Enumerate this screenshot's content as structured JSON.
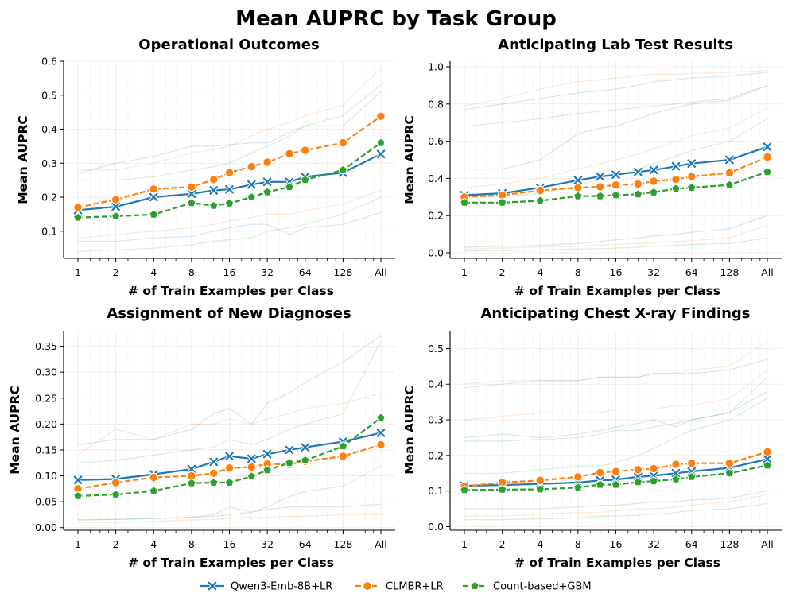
{
  "title": "Mean AUPRC by Task Group",
  "colors": {
    "qwen": "#1f77b4",
    "clmbr": "#ff7f0e",
    "count": "#2ca02c"
  },
  "legend": [
    {
      "key": "qwen",
      "label": "Qwen3-Emb-8B+LR",
      "marker": "x"
    },
    {
      "key": "clmbr",
      "label": "CLMBR+LR",
      "marker": "circle"
    },
    {
      "key": "count",
      "label": "Count-based+GBM",
      "marker": "pentagon"
    }
  ],
  "chart_data": [
    {
      "type": "line",
      "title": "Operational Outcomes",
      "xlabel": "# of Train Examples per Class",
      "ylabel": "Mean AUPRC",
      "categories": [
        "1",
        "2",
        "4",
        "8",
        "16",
        "32",
        "64",
        "128",
        "All"
      ],
      "x": [
        1,
        2,
        4,
        8,
        12,
        16,
        24,
        32,
        48,
        64,
        128,
        "All"
      ],
      "ylim": [
        0.02,
        0.6
      ],
      "yticks": [
        0.1,
        0.2,
        0.3,
        0.4,
        0.5,
        0.6
      ],
      "ytick_labels": [
        "0.1",
        "0.2",
        "0.3",
        "0.4",
        "0.5",
        "0.6"
      ],
      "series": [
        {
          "name": "Qwen3-Emb-8B+LR",
          "values": [
            0.162,
            0.172,
            0.2,
            0.21,
            0.22,
            0.223,
            0.237,
            0.245,
            0.245,
            0.26,
            0.272,
            0.327
          ]
        },
        {
          "name": "CLMBR+LR",
          "values": [
            0.17,
            0.193,
            0.224,
            0.23,
            0.252,
            0.272,
            0.29,
            0.303,
            0.328,
            0.338,
            0.36,
            0.438
          ]
        },
        {
          "name": "Count-based+GBM",
          "values": [
            0.14,
            0.144,
            0.149,
            0.183,
            0.175,
            0.182,
            0.2,
            0.215,
            0.23,
            0.251,
            0.28,
            0.36
          ]
        }
      ],
      "faint_series": [
        {
          "group": "Qwen3-Emb-8B+LR",
          "values": [
            0.27,
            0.3,
            0.32,
            0.35,
            0.35,
            0.355,
            0.36,
            0.36,
            0.39,
            0.41,
            0.41,
            0.51
          ]
        },
        {
          "group": "Qwen3-Emb-8B+LR",
          "values": [
            0.07,
            0.07,
            0.08,
            0.085,
            0.1,
            0.11,
            0.12,
            0.12,
            0.09,
            0.11,
            0.12,
            0.155
          ]
        },
        {
          "group": "CLMBR+LR",
          "values": [
            0.28,
            0.28,
            0.3,
            0.33,
            0.34,
            0.35,
            0.38,
            0.4,
            0.42,
            0.44,
            0.47,
            0.58
          ]
        },
        {
          "group": "CLMBR+LR",
          "values": [
            0.08,
            0.09,
            0.1,
            0.11,
            0.12,
            0.13,
            0.14,
            0.15,
            0.15,
            0.16,
            0.18,
            0.22
          ]
        },
        {
          "group": "Count-based+GBM",
          "values": [
            0.25,
            0.25,
            0.26,
            0.28,
            0.29,
            0.3,
            0.33,
            0.35,
            0.38,
            0.41,
            0.44,
            0.53
          ]
        },
        {
          "group": "Count-based+GBM",
          "values": [
            0.04,
            0.045,
            0.05,
            0.06,
            0.07,
            0.075,
            0.08,
            0.1,
            0.11,
            0.12,
            0.15,
            0.2
          ]
        }
      ]
    },
    {
      "type": "line",
      "title": "Anticipating Lab Test Results",
      "xlabel": "# of Train Examples per Class",
      "ylabel": "Mean AUPRC",
      "categories": [
        "1",
        "2",
        "4",
        "8",
        "16",
        "32",
        "64",
        "128",
        "All"
      ],
      "x": [
        1,
        2,
        4,
        8,
        12,
        16,
        24,
        32,
        48,
        64,
        128,
        "All"
      ],
      "ylim": [
        -0.03,
        1.03
      ],
      "yticks": [
        0.0,
        0.2,
        0.4,
        0.6,
        0.8,
        1.0
      ],
      "ytick_labels": [
        "0.0",
        "0.2",
        "0.4",
        "0.6",
        "0.8",
        "1.0"
      ],
      "series": [
        {
          "name": "Qwen3-Emb-8B+LR",
          "values": [
            0.31,
            0.32,
            0.35,
            0.39,
            0.41,
            0.42,
            0.435,
            0.445,
            0.465,
            0.48,
            0.5,
            0.57
          ]
        },
        {
          "name": "CLMBR+LR",
          "values": [
            0.3,
            0.31,
            0.335,
            0.35,
            0.355,
            0.365,
            0.37,
            0.385,
            0.395,
            0.41,
            0.43,
            0.515
          ]
        },
        {
          "name": "Count-based+GBM",
          "values": [
            0.27,
            0.27,
            0.28,
            0.305,
            0.305,
            0.31,
            0.315,
            0.325,
            0.345,
            0.35,
            0.365,
            0.435
          ]
        }
      ],
      "faint_series": [
        {
          "group": "Qwen3-Emb-8B+LR",
          "values": [
            0.77,
            0.8,
            0.83,
            0.86,
            0.87,
            0.88,
            0.9,
            0.92,
            0.93,
            0.94,
            0.95,
            0.97
          ]
        },
        {
          "group": "Qwen3-Emb-8B+LR",
          "values": [
            0.45,
            0.45,
            0.5,
            0.64,
            0.67,
            0.68,
            0.72,
            0.75,
            0.78,
            0.8,
            0.82,
            0.9
          ]
        },
        {
          "group": "Qwen3-Emb-8B+LR",
          "values": [
            0.03,
            0.035,
            0.04,
            0.05,
            0.06,
            0.07,
            0.08,
            0.09,
            0.1,
            0.11,
            0.13,
            0.2
          ]
        },
        {
          "group": "CLMBR+LR",
          "values": [
            0.79,
            0.83,
            0.88,
            0.92,
            0.93,
            0.94,
            0.95,
            0.96,
            0.96,
            0.965,
            0.97,
            0.98
          ]
        },
        {
          "group": "CLMBR+LR",
          "values": [
            0.35,
            0.37,
            0.4,
            0.45,
            0.48,
            0.5,
            0.53,
            0.56,
            0.6,
            0.63,
            0.67,
            0.78
          ]
        },
        {
          "group": "CLMBR+LR",
          "values": [
            0.02,
            0.025,
            0.03,
            0.035,
            0.04,
            0.045,
            0.05,
            0.055,
            0.06,
            0.065,
            0.08,
            0.15
          ]
        },
        {
          "group": "Count-based+GBM",
          "values": [
            0.68,
            0.7,
            0.72,
            0.75,
            0.76,
            0.77,
            0.78,
            0.79,
            0.8,
            0.81,
            0.83,
            0.9
          ]
        },
        {
          "group": "Count-based+GBM",
          "values": [
            0.3,
            0.3,
            0.32,
            0.36,
            0.4,
            0.42,
            0.45,
            0.48,
            0.52,
            0.55,
            0.6,
            0.72
          ]
        },
        {
          "group": "Count-based+GBM",
          "values": [
            0.01,
            0.012,
            0.015,
            0.02,
            0.022,
            0.025,
            0.03,
            0.035,
            0.04,
            0.045,
            0.05,
            0.08
          ]
        }
      ]
    },
    {
      "type": "line",
      "title": "Assignment of New Diagnoses",
      "xlabel": "# of Train Examples per Class",
      "ylabel": "Mean AUPRC",
      "categories": [
        "1",
        "2",
        "4",
        "8",
        "16",
        "32",
        "64",
        "128",
        "All"
      ],
      "x": [
        1,
        2,
        4,
        8,
        12,
        16,
        24,
        32,
        48,
        64,
        128,
        "All"
      ],
      "ylim": [
        -0.005,
        0.38
      ],
      "yticks": [
        0.0,
        0.05,
        0.1,
        0.15,
        0.2,
        0.25,
        0.3,
        0.35
      ],
      "ytick_labels": [
        "0.00",
        "0.05",
        "0.10",
        "0.15",
        "0.20",
        "0.25",
        "0.30",
        "0.35"
      ],
      "series": [
        {
          "name": "Qwen3-Emb-8B+LR",
          "values": [
            0.092,
            0.094,
            0.103,
            0.113,
            0.127,
            0.138,
            0.133,
            0.142,
            0.15,
            0.155,
            0.166,
            0.183
          ]
        },
        {
          "name": "CLMBR+LR",
          "values": [
            0.075,
            0.087,
            0.097,
            0.1,
            0.105,
            0.115,
            0.117,
            0.123,
            0.122,
            0.128,
            0.138,
            0.16
          ]
        },
        {
          "name": "Count-based+GBM",
          "values": [
            0.061,
            0.064,
            0.071,
            0.086,
            0.087,
            0.087,
            0.099,
            0.111,
            0.125,
            0.13,
            0.157,
            0.212
          ]
        }
      ],
      "faint_series": [
        {
          "group": "Qwen3-Emb-8B+LR",
          "values": [
            0.16,
            0.17,
            0.17,
            0.19,
            0.22,
            0.23,
            0.2,
            0.24,
            0.26,
            0.28,
            0.32,
            0.37
          ]
        },
        {
          "group": "Qwen3-Emb-8B+LR",
          "values": [
            0.015,
            0.016,
            0.018,
            0.02,
            0.025,
            0.04,
            0.03,
            0.035,
            0.04,
            0.04,
            0.04,
            0.045
          ]
        },
        {
          "group": "CLMBR+LR",
          "values": [
            0.14,
            0.19,
            0.17,
            0.2,
            0.2,
            0.21,
            0.2,
            0.21,
            0.22,
            0.23,
            0.24,
            0.26
          ]
        },
        {
          "group": "CLMBR+LR",
          "values": [
            0.01,
            0.01,
            0.012,
            0.015,
            0.016,
            0.018,
            0.02,
            0.02,
            0.022,
            0.022,
            0.025,
            0.025
          ]
        },
        {
          "group": "Count-based+GBM",
          "values": [
            0.125,
            0.13,
            0.14,
            0.15,
            0.155,
            0.17,
            0.16,
            0.17,
            0.19,
            0.2,
            0.22,
            0.36
          ]
        },
        {
          "group": "Count-based+GBM",
          "values": [
            0.015,
            0.016,
            0.018,
            0.02,
            0.022,
            0.025,
            0.03,
            0.04,
            0.06,
            0.07,
            0.08,
            0.12
          ]
        }
      ]
    },
    {
      "type": "line",
      "title": "Anticipating Chest X-ray Findings",
      "xlabel": "# of Train Examples per Class",
      "ylabel": "Mean AUPRC",
      "categories": [
        "1",
        "2",
        "4",
        "8",
        "16",
        "32",
        "64",
        "128",
        "All"
      ],
      "x": [
        1,
        2,
        4,
        8,
        12,
        16,
        24,
        32,
        48,
        64,
        128,
        "All"
      ],
      "ylim": [
        -0.01,
        0.55
      ],
      "yticks": [
        0.0,
        0.1,
        0.2,
        0.3,
        0.4,
        0.5
      ],
      "ytick_labels": [
        "0.0",
        "0.1",
        "0.2",
        "0.3",
        "0.4",
        "0.5"
      ],
      "series": [
        {
          "name": "Qwen3-Emb-8B+LR",
          "values": [
            0.115,
            0.117,
            0.12,
            0.124,
            0.13,
            0.132,
            0.14,
            0.143,
            0.15,
            0.155,
            0.165,
            0.19
          ]
        },
        {
          "name": "CLMBR+LR",
          "values": [
            0.113,
            0.124,
            0.13,
            0.14,
            0.152,
            0.155,
            0.16,
            0.163,
            0.175,
            0.178,
            0.178,
            0.21
          ]
        },
        {
          "name": "Count-based+GBM",
          "values": [
            0.103,
            0.104,
            0.105,
            0.11,
            0.118,
            0.118,
            0.125,
            0.128,
            0.133,
            0.14,
            0.15,
            0.172
          ]
        }
      ],
      "faint_series": [
        {
          "group": "Qwen3-Emb-8B+LR",
          "values": [
            0.39,
            0.4,
            0.41,
            0.41,
            0.42,
            0.42,
            0.42,
            0.43,
            0.43,
            0.43,
            0.44,
            0.47
          ]
        },
        {
          "group": "Qwen3-Emb-8B+LR",
          "values": [
            0.25,
            0.26,
            0.25,
            0.26,
            0.27,
            0.28,
            0.29,
            0.3,
            0.28,
            0.3,
            0.32,
            0.38
          ]
        },
        {
          "group": "Qwen3-Emb-8B+LR",
          "values": [
            0.05,
            0.05,
            0.05,
            0.055,
            0.06,
            0.06,
            0.065,
            0.07,
            0.07,
            0.075,
            0.08,
            0.1
          ]
        },
        {
          "group": "CLMBR+LR",
          "values": [
            0.4,
            0.41,
            0.41,
            0.41,
            0.42,
            0.42,
            0.42,
            0.43,
            0.43,
            0.44,
            0.45,
            0.52
          ]
        },
        {
          "group": "CLMBR+LR",
          "values": [
            0.3,
            0.31,
            0.32,
            0.32,
            0.32,
            0.33,
            0.33,
            0.33,
            0.34,
            0.34,
            0.36,
            0.44
          ]
        },
        {
          "group": "CLMBR+LR",
          "values": [
            0.03,
            0.03,
            0.035,
            0.04,
            0.04,
            0.045,
            0.05,
            0.05,
            0.055,
            0.06,
            0.07,
            0.09
          ]
        },
        {
          "group": "Count-based+GBM",
          "values": [
            0.24,
            0.24,
            0.245,
            0.25,
            0.26,
            0.27,
            0.27,
            0.28,
            0.29,
            0.3,
            0.32,
            0.42
          ]
        },
        {
          "group": "Count-based+GBM",
          "values": [
            0.15,
            0.15,
            0.16,
            0.17,
            0.17,
            0.18,
            0.2,
            0.22,
            0.25,
            0.27,
            0.3,
            0.36
          ]
        },
        {
          "group": "Count-based+GBM",
          "values": [
            0.02,
            0.02,
            0.022,
            0.025,
            0.03,
            0.03,
            0.032,
            0.035,
            0.04,
            0.045,
            0.05,
            0.065
          ]
        }
      ]
    }
  ]
}
